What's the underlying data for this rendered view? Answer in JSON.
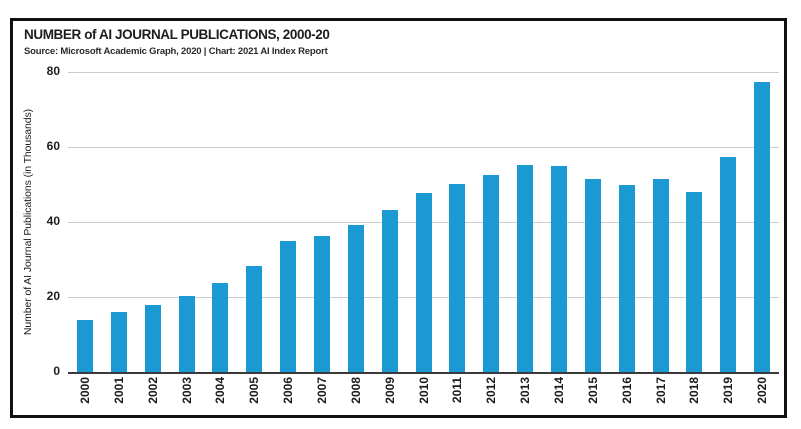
{
  "chart_data": {
    "type": "bar",
    "title": "NUMBER of AI JOURNAL PUBLICATIONS, 2000-20",
    "subtitle": "Source: Microsoft Academic Graph, 2020 | Chart: 2021 AI Index Report",
    "ylabel": "Number of AI Journal Publications (in Thousands)",
    "xlabel": "",
    "categories": [
      "2000",
      "2001",
      "2002",
      "2003",
      "2004",
      "2005",
      "2006",
      "2007",
      "2008",
      "2009",
      "2010",
      "2011",
      "2012",
      "2013",
      "2014",
      "2015",
      "2016",
      "2017",
      "2018",
      "2019",
      "2020"
    ],
    "values": [
      14.0,
      15.9,
      17.9,
      20.4,
      23.7,
      28.3,
      35.0,
      36.3,
      39.3,
      43.3,
      47.8,
      50.2,
      52.6,
      55.3,
      54.9,
      51.4,
      49.9,
      51.4,
      47.9,
      57.4,
      77.4
    ],
    "ylim": [
      0,
      80
    ],
    "yticks": [
      0,
      20,
      40,
      60,
      80
    ],
    "grid": true,
    "legend": false,
    "bar_color": "#1b99d2",
    "gridline_color": "#cccccc",
    "axis_color": "#3a3a3a",
    "frame_border_color": "#111111",
    "text_color": "#1d1d1d"
  }
}
